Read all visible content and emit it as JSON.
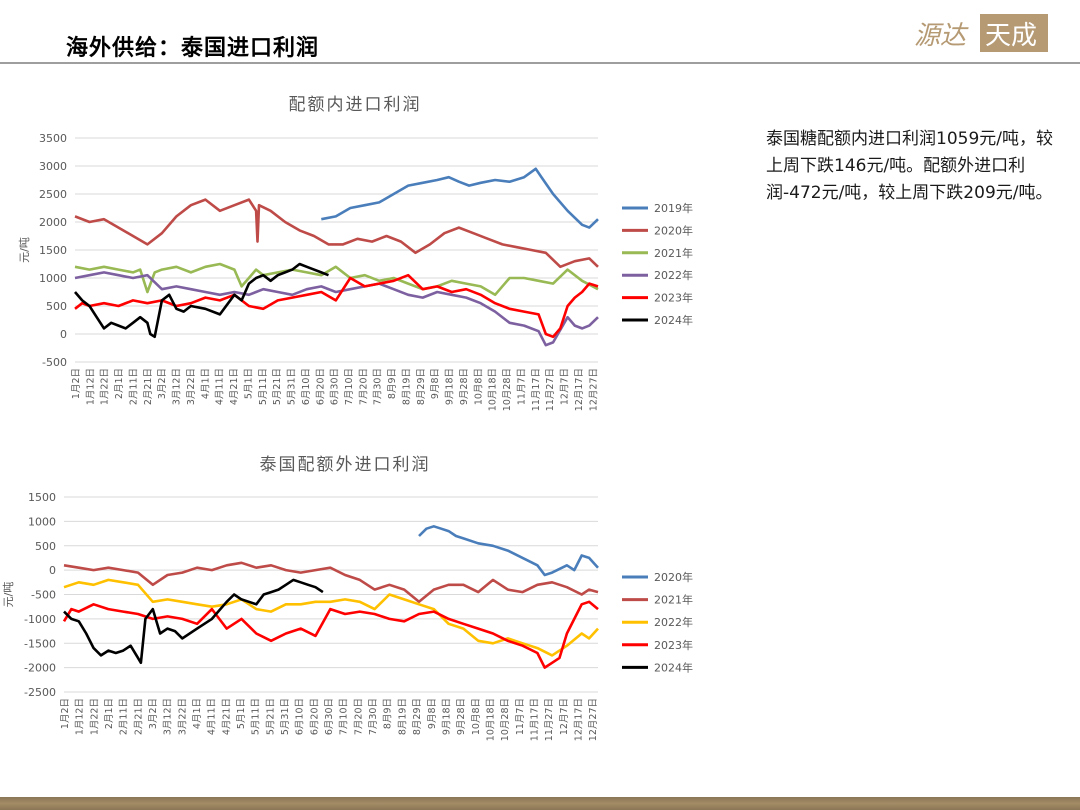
{
  "header": {
    "title": "海外供给：泰国进口利润",
    "logo_text": "源达 天成"
  },
  "commentary": {
    "text": "泰国糖配额内进口利润1059元/吨，较上周下跌146元/吨。配额外进口利润-472元/吨，较上周下跌209元/吨。"
  },
  "colors": {
    "2019": "#4a7ebb",
    "2020": "#be4b48",
    "2021": "#98b954",
    "2022": "#7d60a0",
    "2023": "#ff0000",
    "2024": "#000000",
    "yellow_2022": "#ffc000"
  },
  "x_categories": [
    "1月2日",
    "1月12日",
    "1月22日",
    "2月1日",
    "2月11日",
    "2月21日",
    "3月2日",
    "3月12日",
    "3月22日",
    "4月1日",
    "4月11日",
    "4月21日",
    "5月1日",
    "5月11日",
    "5月21日",
    "5月31日",
    "6月10日",
    "6月20日",
    "6月30日",
    "7月10日",
    "7月20日",
    "7月30日",
    "8月9日",
    "8月19日",
    "8月29日",
    "9月8日",
    "9月18日",
    "9月28日",
    "10月8日",
    "10月18日",
    "10月28日",
    "11月7日",
    "11月17日",
    "11月27日",
    "12月7日",
    "12月17日",
    "12月27日"
  ],
  "chart_data": [
    {
      "type": "line",
      "title": "配额内进口利润",
      "ylabel": "元/吨",
      "ylim": [
        -500,
        3500
      ],
      "yticks": [
        -500,
        0,
        500,
        1000,
        1500,
        2000,
        2500,
        3000,
        3500
      ],
      "grid": true,
      "legend_position": "right",
      "x_domain": [
        0,
        361
      ],
      "series": [
        {
          "name": "2019年",
          "color_key": "2019",
          "x": [
            170,
            180,
            190,
            200,
            210,
            220,
            230,
            240,
            250,
            258,
            265,
            272,
            280,
            290,
            300,
            310,
            318,
            322,
            330,
            340,
            350,
            355,
            361
          ],
          "y": [
            2050,
            2100,
            2250,
            2300,
            2350,
            2500,
            2650,
            2700,
            2750,
            2800,
            2720,
            2650,
            2700,
            2750,
            2720,
            2800,
            2950,
            2800,
            2500,
            2200,
            1950,
            1900,
            2050
          ]
        },
        {
          "name": "2020年",
          "color_key": "2020",
          "x": [
            0,
            10,
            20,
            30,
            40,
            50,
            60,
            70,
            80,
            90,
            100,
            110,
            120,
            125,
            126,
            127,
            135,
            145,
            155,
            165,
            175,
            185,
            195,
            205,
            215,
            225,
            235,
            245,
            255,
            265,
            275,
            285,
            295,
            305,
            315,
            325,
            335,
            345,
            355,
            361
          ],
          "y": [
            2100,
            2000,
            2050,
            1900,
            1750,
            1600,
            1800,
            2100,
            2300,
            2400,
            2200,
            2300,
            2400,
            2200,
            1650,
            2300,
            2200,
            2000,
            1850,
            1750,
            1600,
            1600,
            1700,
            1650,
            1750,
            1650,
            1450,
            1600,
            1800,
            1900,
            1800,
            1700,
            1600,
            1550,
            1500,
            1450,
            1200,
            1300,
            1350,
            1200
          ]
        },
        {
          "name": "2021年",
          "color_key": "2021",
          "x": [
            0,
            10,
            20,
            30,
            40,
            45,
            50,
            55,
            60,
            70,
            80,
            90,
            100,
            110,
            115,
            120,
            125,
            130,
            140,
            150,
            160,
            170,
            180,
            190,
            200,
            210,
            220,
            230,
            240,
            250,
            260,
            270,
            280,
            290,
            300,
            310,
            320,
            330,
            340,
            350,
            361
          ],
          "y": [
            1200,
            1150,
            1200,
            1150,
            1100,
            1150,
            750,
            1100,
            1150,
            1200,
            1100,
            1200,
            1250,
            1150,
            850,
            1000,
            1150,
            1050,
            1100,
            1150,
            1100,
            1050,
            1200,
            1000,
            1050,
            950,
            1000,
            900,
            800,
            850,
            950,
            900,
            850,
            700,
            1000,
            1000,
            950,
            900,
            1150,
            950,
            800
          ]
        },
        {
          "name": "2022年",
          "color_key": "2022",
          "x": [
            0,
            10,
            20,
            30,
            40,
            50,
            60,
            70,
            80,
            90,
            100,
            110,
            120,
            130,
            140,
            150,
            160,
            170,
            180,
            190,
            200,
            210,
            220,
            230,
            240,
            250,
            260,
            270,
            280,
            290,
            300,
            310,
            320,
            325,
            330,
            340,
            345,
            350,
            355,
            361
          ],
          "y": [
            1000,
            1050,
            1100,
            1050,
            1000,
            1050,
            800,
            850,
            800,
            750,
            700,
            750,
            700,
            800,
            750,
            700,
            800,
            850,
            750,
            800,
            850,
            900,
            800,
            700,
            650,
            750,
            700,
            650,
            550,
            400,
            200,
            150,
            50,
            -200,
            -150,
            300,
            150,
            100,
            150,
            300
          ]
        },
        {
          "name": "2023年",
          "color_key": "2023",
          "x": [
            0,
            5,
            10,
            20,
            30,
            40,
            50,
            60,
            70,
            80,
            90,
            100,
            110,
            120,
            130,
            140,
            150,
            160,
            170,
            180,
            190,
            200,
            210,
            220,
            230,
            240,
            250,
            260,
            270,
            280,
            290,
            300,
            310,
            320,
            325,
            330,
            335,
            340,
            345,
            350,
            355,
            361
          ],
          "y": [
            450,
            550,
            500,
            550,
            500,
            600,
            550,
            600,
            500,
            550,
            650,
            600,
            700,
            500,
            450,
            600,
            650,
            700,
            750,
            600,
            1000,
            850,
            900,
            950,
            1050,
            800,
            850,
            750,
            800,
            700,
            550,
            450,
            400,
            350,
            0,
            -50,
            100,
            500,
            650,
            750,
            900,
            850
          ]
        },
        {
          "name": "2024年",
          "color_key": "2024",
          "x": [
            0,
            5,
            10,
            15,
            20,
            25,
            30,
            35,
            40,
            45,
            50,
            52,
            55,
            60,
            65,
            70,
            75,
            80,
            90,
            100,
            110,
            115,
            120,
            125,
            130,
            135,
            140,
            145,
            150,
            155,
            160,
            165,
            170,
            175
          ],
          "y": [
            750,
            600,
            500,
            300,
            100,
            200,
            150,
            100,
            200,
            300,
            200,
            0,
            -50,
            600,
            700,
            450,
            400,
            500,
            450,
            350,
            700,
            600,
            900,
            1000,
            1050,
            950,
            1050,
            1100,
            1150,
            1250,
            1200,
            1150,
            1100,
            1050
          ]
        }
      ]
    },
    {
      "type": "line",
      "title": "泰国配额外进口利润",
      "ylabel": "元/吨",
      "ylim": [
        -2500,
        1500
      ],
      "yticks": [
        -2500,
        -2000,
        -1500,
        -1000,
        -500,
        0,
        500,
        1000,
        1500
      ],
      "grid": true,
      "legend_position": "right",
      "x_domain": [
        0,
        361
      ],
      "series": [
        {
          "name": "2020年",
          "color_key": "2019",
          "x": [
            240,
            245,
            250,
            255,
            260,
            265,
            270,
            280,
            290,
            300,
            310,
            320,
            325,
            330,
            340,
            345,
            350,
            355,
            361
          ],
          "y": [
            700,
            850,
            900,
            850,
            800,
            700,
            650,
            550,
            500,
            400,
            250,
            100,
            -100,
            -50,
            100,
            0,
            300,
            250,
            50
          ]
        },
        {
          "name": "2021年",
          "color_key": "2020",
          "x": [
            0,
            10,
            20,
            30,
            40,
            50,
            60,
            70,
            80,
            90,
            100,
            110,
            120,
            130,
            140,
            150,
            160,
            170,
            180,
            190,
            200,
            210,
            220,
            230,
            240,
            250,
            260,
            270,
            280,
            290,
            300,
            310,
            320,
            330,
            340,
            350,
            355,
            361
          ],
          "y": [
            100,
            50,
            0,
            50,
            0,
            -50,
            -300,
            -100,
            -50,
            50,
            0,
            100,
            150,
            50,
            100,
            0,
            -50,
            0,
            50,
            -100,
            -200,
            -400,
            -300,
            -400,
            -650,
            -400,
            -300,
            -300,
            -450,
            -200,
            -400,
            -450,
            -300,
            -250,
            -350,
            -500,
            -400,
            -450
          ]
        },
        {
          "name": "2022年",
          "color_key": "yellow_2022",
          "x": [
            0,
            10,
            20,
            30,
            40,
            50,
            60,
            70,
            80,
            90,
            100,
            110,
            120,
            130,
            140,
            150,
            160,
            170,
            180,
            190,
            200,
            210,
            220,
            230,
            240,
            250,
            260,
            270,
            280,
            290,
            300,
            310,
            320,
            330,
            340,
            350,
            355,
            361
          ],
          "y": [
            -350,
            -250,
            -300,
            -200,
            -250,
            -300,
            -650,
            -600,
            -650,
            -700,
            -750,
            -700,
            -600,
            -800,
            -850,
            -700,
            -700,
            -650,
            -650,
            -600,
            -650,
            -800,
            -500,
            -600,
            -700,
            -800,
            -1100,
            -1200,
            -1450,
            -1500,
            -1400,
            -1500,
            -1600,
            -1750,
            -1550,
            -1300,
            -1400,
            -1200
          ]
        },
        {
          "name": "2023年",
          "color_key": "2023",
          "x": [
            0,
            5,
            10,
            20,
            30,
            40,
            50,
            60,
            70,
            80,
            90,
            100,
            110,
            120,
            130,
            140,
            150,
            160,
            170,
            180,
            190,
            200,
            210,
            220,
            230,
            240,
            250,
            260,
            270,
            280,
            290,
            300,
            310,
            320,
            325,
            330,
            335,
            340,
            345,
            350,
            355,
            361
          ],
          "y": [
            -1050,
            -800,
            -850,
            -700,
            -800,
            -850,
            -900,
            -1000,
            -950,
            -1000,
            -1100,
            -800,
            -1200,
            -1000,
            -1300,
            -1450,
            -1300,
            -1200,
            -1350,
            -800,
            -900,
            -850,
            -900,
            -1000,
            -1050,
            -900,
            -850,
            -1000,
            -1100,
            -1200,
            -1300,
            -1450,
            -1550,
            -1700,
            -2000,
            -1900,
            -1800,
            -1300,
            -1000,
            -700,
            -650,
            -800
          ]
        },
        {
          "name": "2024年",
          "color_key": "2024",
          "x": [
            0,
            5,
            10,
            15,
            20,
            25,
            30,
            35,
            40,
            45,
            50,
            52,
            55,
            60,
            65,
            70,
            75,
            80,
            90,
            100,
            110,
            115,
            120,
            125,
            130,
            135,
            140,
            145,
            150,
            155,
            160,
            165,
            170,
            175
          ],
          "y": [
            -850,
            -1000,
            -1050,
            -1300,
            -1600,
            -1750,
            -1650,
            -1700,
            -1650,
            -1550,
            -1800,
            -1900,
            -1000,
            -800,
            -1300,
            -1200,
            -1250,
            -1400,
            -1200,
            -1000,
            -650,
            -500,
            -600,
            -650,
            -700,
            -500,
            -450,
            -400,
            -300,
            -200,
            -250,
            -300,
            -350,
            -450
          ]
        }
      ]
    }
  ]
}
